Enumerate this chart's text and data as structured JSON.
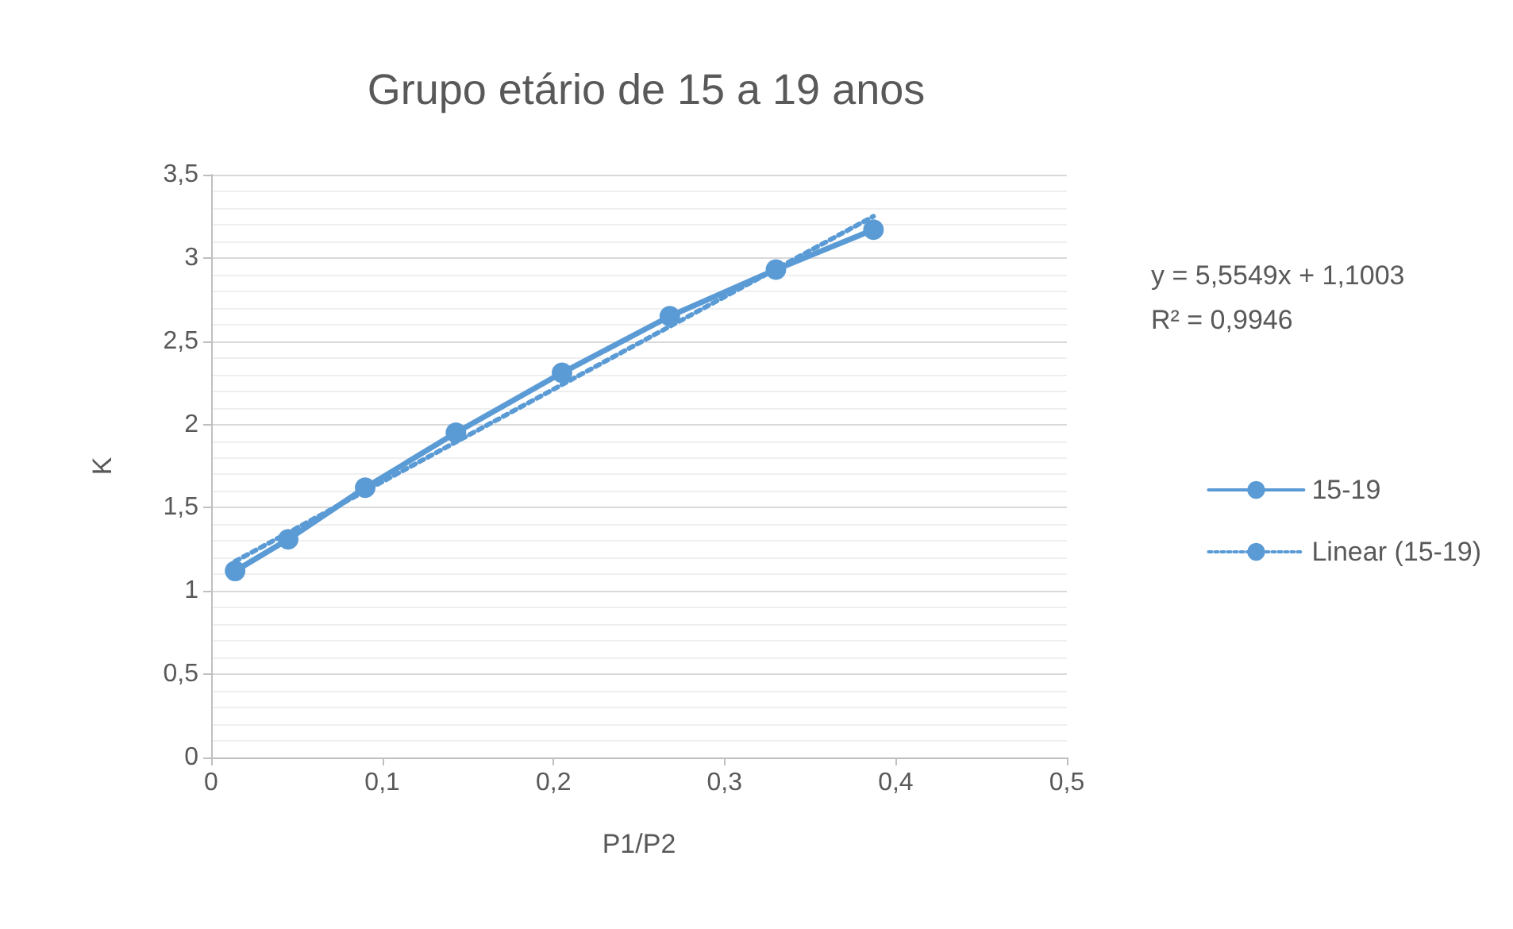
{
  "chart_data": {
    "type": "line",
    "title": "Grupo etário de 15 a 19 anos",
    "xlabel": "P1/P2",
    "ylabel": "K",
    "series": [
      {
        "name": "15-19",
        "color": "#5b9bd5",
        "x": [
          0.014,
          0.045,
          0.09,
          0.143,
          0.205,
          0.268,
          0.33,
          0.387
        ],
        "values": [
          1.12,
          1.31,
          1.62,
          1.95,
          2.31,
          2.65,
          2.93,
          3.17
        ],
        "marker": "circle",
        "line_style": "solid"
      },
      {
        "name": "Linear (15-19)",
        "color": "#5b9bd5",
        "x": [
          0.014,
          0.387
        ],
        "values": [
          1.178,
          3.25
        ],
        "marker": "none",
        "line_style": "dotted"
      }
    ],
    "xlim": [
      0,
      0.5
    ],
    "xticks": [
      0,
      {
        "value": 0.1,
        "label": "0,1"
      },
      {
        "value": 0.2,
        "label": "0,2"
      },
      {
        "value": 0.3,
        "label": "0,3"
      },
      {
        "value": 0.4,
        "label": "0,4"
      },
      {
        "value": 0.5,
        "label": "0,5"
      }
    ],
    "ylim": [
      0,
      3.5
    ],
    "yticks": [
      0,
      {
        "value": 0.5,
        "label": "0,5"
      },
      1,
      {
        "value": 1.5,
        "label": "1,5"
      },
      2,
      {
        "value": 2.5,
        "label": "2,5"
      },
      3,
      {
        "value": 3.5,
        "label": "3,5"
      }
    ],
    "grid": "y",
    "legend": "right",
    "annotations": [
      "y = 5,5549x + 1,1003",
      "R² = 0,9946"
    ]
  }
}
